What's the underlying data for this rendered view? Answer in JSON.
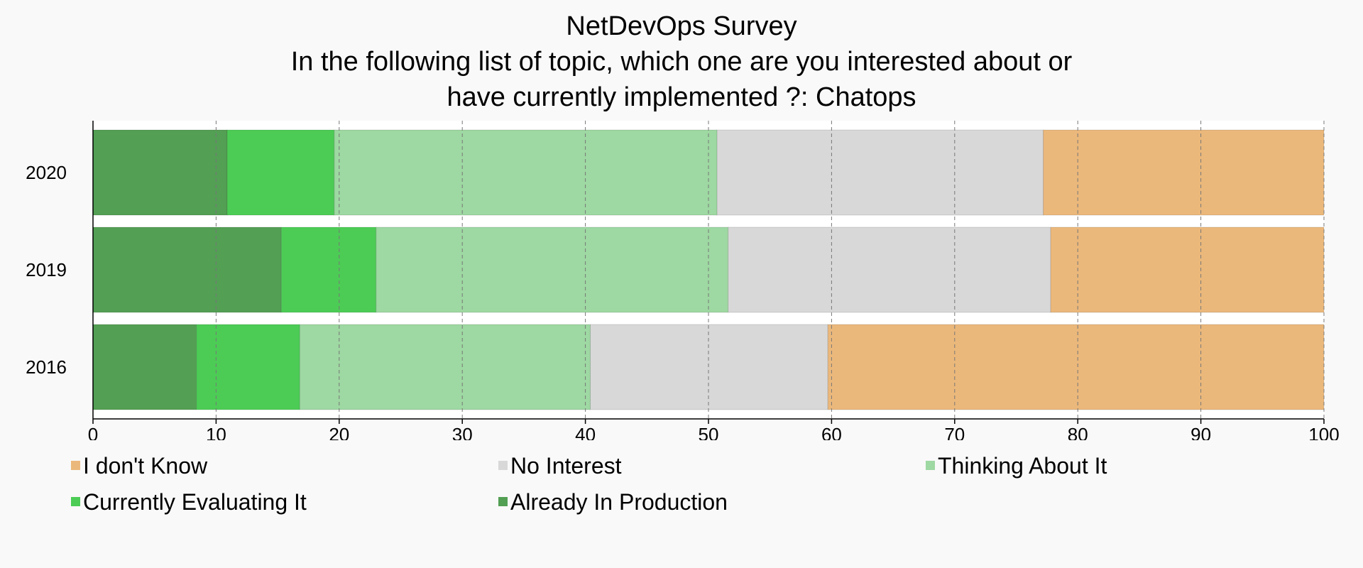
{
  "chart_data": {
    "type": "bar",
    "orientation": "horizontal",
    "stacked": true,
    "title": [
      "NetDevOps Survey",
      "In the following list of topic, which one are you interested about or",
      "have currently implemented ?: Chatops"
    ],
    "categories": [
      "2020",
      "2019",
      "2016"
    ],
    "xlim": [
      0,
      100
    ],
    "x_ticks": [
      "0",
      "10",
      "20",
      "30",
      "40",
      "50",
      "60",
      "70",
      "80",
      "90",
      "100"
    ],
    "grid": "vertical-dashed",
    "legend_position": "bottom",
    "series": [
      {
        "name": "Already In Production",
        "color": "#539f54",
        "values": [
          10.9,
          15.3,
          8.4
        ]
      },
      {
        "name": "Currently Evaluating It",
        "color": "#4ccc55",
        "values": [
          8.7,
          7.7,
          8.4
        ]
      },
      {
        "name": "Thinking About It",
        "color": "#9ed8a2",
        "values": [
          31.1,
          28.6,
          23.6
        ]
      },
      {
        "name": "No Interest",
        "color": "#d8d8d8",
        "values": [
          26.5,
          26.2,
          19.3
        ]
      },
      {
        "name": "I don't Know",
        "color": "#ebb87b",
        "values": [
          22.8,
          22.2,
          40.3
        ]
      }
    ],
    "legend_order": [
      "I don't Know",
      "No Interest",
      "Thinking About It",
      "Currently Evaluating It",
      "Already In Production"
    ]
  }
}
